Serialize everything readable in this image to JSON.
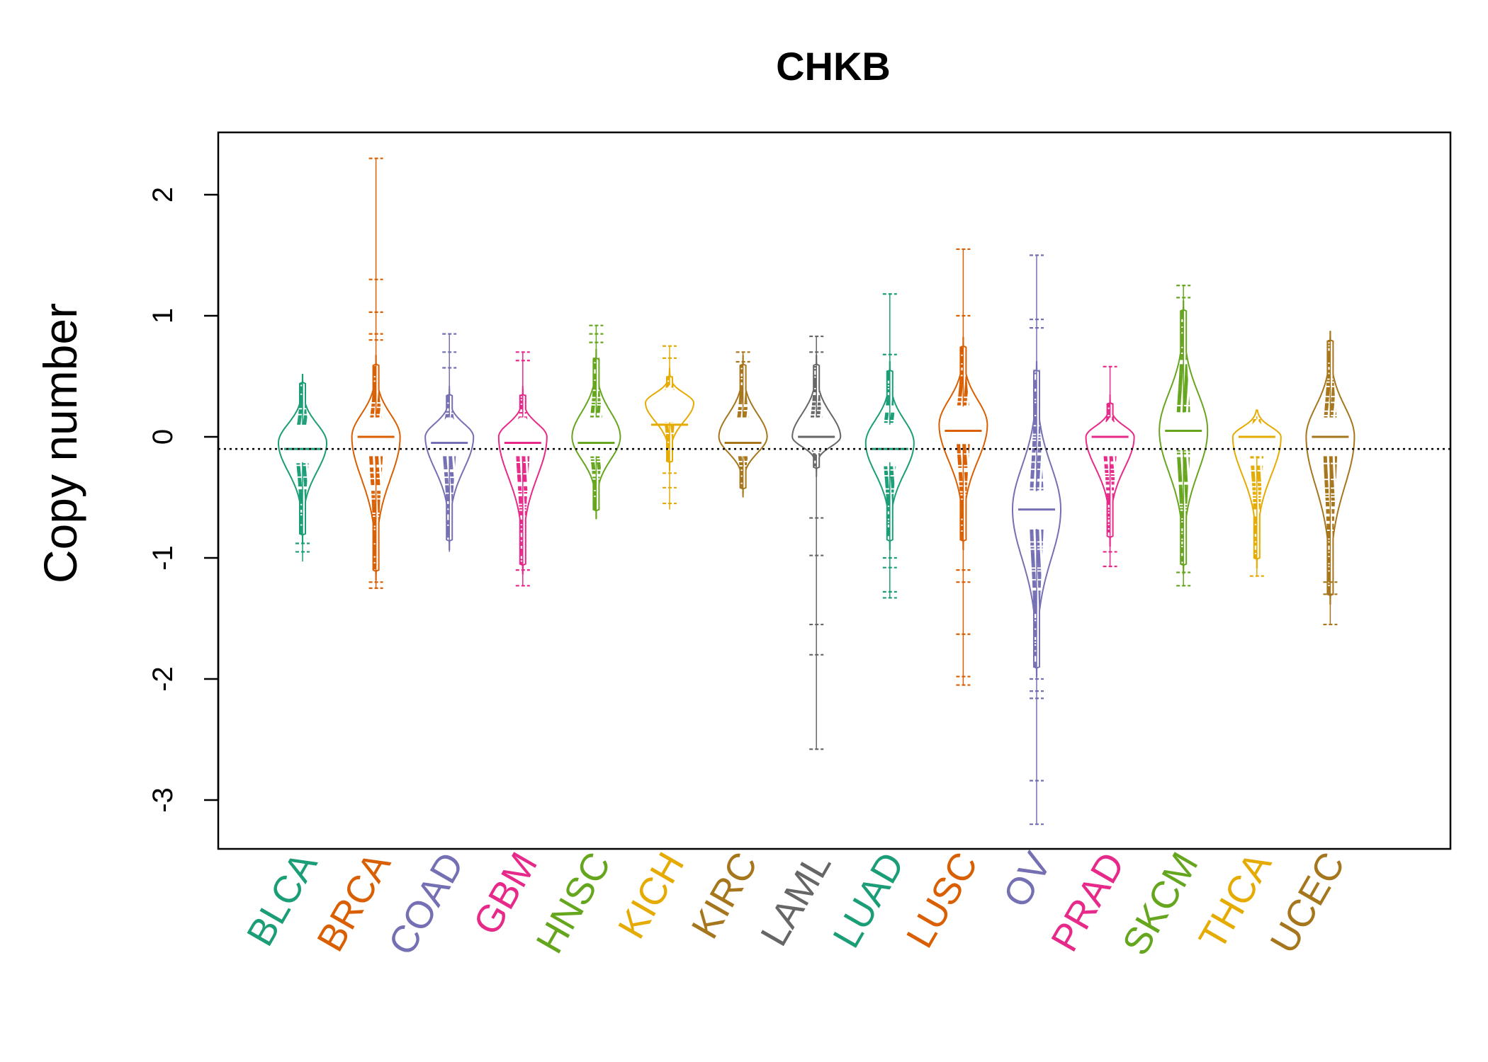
{
  "chart_data": {
    "type": "beanplot",
    "title": "CHKB",
    "xlabel": "",
    "ylabel": "Copy number",
    "ylim": [
      -3.4,
      2.55
    ],
    "yticks": [
      -3,
      -2,
      -1,
      0,
      1,
      2
    ],
    "reference_line": -0.1,
    "categories": [
      "BLCA",
      "BRCA",
      "COAD",
      "GBM",
      "HNSC",
      "KICH",
      "KIRC",
      "LAML",
      "LUAD",
      "LUSC",
      "OV",
      "PRAD",
      "SKCM",
      "THCA",
      "UCEC"
    ],
    "colors": [
      "#1B9E77",
      "#D95F02",
      "#7570B3",
      "#E7298A",
      "#66A61E",
      "#E6AB02",
      "#A6761D",
      "#666666",
      "#1B9E77",
      "#D95F02",
      "#7570B3",
      "#E7298A",
      "#66A61E",
      "#E6AB02",
      "#A6761D"
    ],
    "series": [
      {
        "name": "BLCA",
        "median": -0.1,
        "mode": -0.05,
        "min": -1.03,
        "max": 0.5,
        "core_low": -0.8,
        "core_high": 0.45,
        "outliers": [
          -0.95,
          -0.88
        ]
      },
      {
        "name": "BRCA",
        "median": 0.0,
        "mode": 0.0,
        "min": -1.25,
        "max": 2.3,
        "core_low": -1.1,
        "core_high": 0.6,
        "outliers": [
          2.3,
          1.3,
          1.03,
          0.85,
          0.8,
          -1.2,
          -1.25
        ]
      },
      {
        "name": "COAD",
        "median": -0.05,
        "mode": 0.0,
        "min": -0.95,
        "max": 0.85,
        "core_low": -0.85,
        "core_high": 0.35,
        "outliers": [
          0.85,
          0.7,
          0.57
        ]
      },
      {
        "name": "GBM",
        "median": -0.05,
        "mode": 0.0,
        "min": -1.23,
        "max": 0.7,
        "core_low": -1.05,
        "core_high": 0.35,
        "outliers": [
          0.7,
          0.63,
          -1.1,
          -1.23
        ]
      },
      {
        "name": "HNSC",
        "median": -0.05,
        "mode": 0.0,
        "min": -0.65,
        "max": 0.92,
        "core_low": -0.6,
        "core_high": 0.65,
        "outliers": [
          0.92,
          0.85,
          0.78
        ]
      },
      {
        "name": "KICH",
        "median": 0.1,
        "mode": 0.28,
        "min": -0.6,
        "max": 0.75,
        "core_low": -0.2,
        "core_high": 0.5,
        "outliers": [
          0.75,
          0.65,
          -0.3,
          -0.42,
          -0.55
        ]
      },
      {
        "name": "KIRC",
        "median": -0.05,
        "mode": 0.0,
        "min": -0.45,
        "max": 0.7,
        "core_low": -0.42,
        "core_high": 0.6,
        "outliers": [
          0.7,
          0.62
        ]
      },
      {
        "name": "LAML",
        "median": 0.0,
        "mode": 0.0,
        "min": -2.58,
        "max": 0.83,
        "core_low": -0.25,
        "core_high": 0.6,
        "outliers": [
          0.83,
          0.7,
          -0.67,
          -0.98,
          -1.55,
          -1.8,
          -2.58
        ]
      },
      {
        "name": "LUAD",
        "median": -0.1,
        "mode": -0.05,
        "min": -1.33,
        "max": 1.18,
        "core_low": -0.85,
        "core_high": 0.55,
        "outliers": [
          1.18,
          0.68,
          -1.0,
          -1.08,
          -1.28,
          -1.33
        ]
      },
      {
        "name": "LUSC",
        "median": 0.05,
        "mode": 0.1,
        "min": -2.05,
        "max": 1.55,
        "core_low": -0.85,
        "core_high": 0.75,
        "outliers": [
          1.55,
          1.0,
          -1.1,
          -1.2,
          -1.63,
          -1.98,
          -2.05
        ]
      },
      {
        "name": "OV",
        "median": -0.6,
        "mode": -0.6,
        "min": -3.2,
        "max": 1.5,
        "core_low": -1.9,
        "core_high": 0.55,
        "outliers": [
          1.5,
          0.97,
          0.9,
          -2.0,
          -2.1,
          -2.16,
          -2.84,
          -3.2
        ]
      },
      {
        "name": "PRAD",
        "median": 0.0,
        "mode": 0.0,
        "min": -1.07,
        "max": 0.58,
        "core_low": -0.82,
        "core_high": 0.28,
        "outliers": [
          0.58,
          -0.95,
          -1.07
        ]
      },
      {
        "name": "SKCM",
        "median": 0.05,
        "mode": 0.05,
        "min": -1.23,
        "max": 1.25,
        "core_low": -1.05,
        "core_high": 1.05,
        "outliers": [
          1.25,
          1.15,
          -1.12,
          -1.23
        ]
      },
      {
        "name": "THCA",
        "median": 0.0,
        "mode": 0.0,
        "min": -1.15,
        "max": 0.17,
        "core_low": -1.0,
        "core_high": 0.15,
        "outliers": [
          -1.15
        ]
      },
      {
        "name": "UCEC",
        "median": 0.0,
        "mode": 0.0,
        "min": -1.55,
        "max": 0.8,
        "core_low": -1.3,
        "core_high": 0.8,
        "outliers": [
          -1.2,
          -1.3,
          -1.55
        ]
      }
    ]
  }
}
